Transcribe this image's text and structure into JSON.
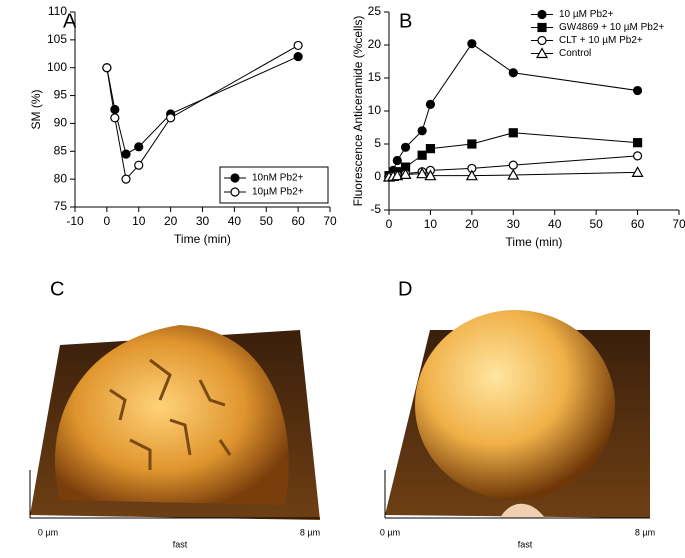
{
  "chart_data": [
    {
      "type": "line",
      "xlabel": "Time (min)",
      "ylabel": "SM (%)",
      "x": [
        0,
        2.5,
        6,
        10,
        20,
        60
      ],
      "xlim": [
        -10,
        70
      ],
      "xticks": [
        -10,
        0,
        10,
        20,
        30,
        40,
        50,
        60,
        70
      ],
      "ylim": [
        75,
        110
      ],
      "yticks": [
        75,
        80,
        85,
        90,
        95,
        100,
        105,
        110
      ],
      "legend": "lower right",
      "legend_frame": true,
      "series": [
        {
          "name": "10nM Pb2+",
          "color": "#000000",
          "marker": "circle",
          "filled": true,
          "values": [
            100,
            92.5,
            84.5,
            85.8,
            91.7,
            102
          ]
        },
        {
          "name": "10µM Pb2+",
          "color": "#000000",
          "marker": "circle",
          "filled": false,
          "values": [
            100,
            91,
            80,
            82.5,
            91,
            104
          ]
        }
      ]
    },
    {
      "type": "line",
      "xlabel": "Time (min)",
      "ylabel": "Fluorescence Anticeramide (%cells)",
      "x": [
        0,
        1,
        2,
        4,
        8,
        10,
        20,
        30,
        60
      ],
      "xlim": [
        0,
        70
      ],
      "xticks": [
        0,
        10,
        20,
        30,
        40,
        50,
        60,
        70
      ],
      "ylim": [
        -5,
        25
      ],
      "yticks": [
        -5,
        0,
        5,
        10,
        15,
        20,
        25
      ],
      "legend": "upper right",
      "legend_frame": false,
      "series": [
        {
          "name": "10  µM Pb2+",
          "color": "#000000",
          "marker": "circle",
          "filled": true,
          "values": [
            0.2,
            1,
            2.5,
            4.5,
            7,
            11,
            20.2,
            15.8,
            13.1
          ]
        },
        {
          "name": "GW4869 + 10  µM Pb2+",
          "color": "#000000",
          "marker": "square",
          "filled": true,
          "values": [
            0.2,
            0.5,
            0.8,
            1.5,
            3.3,
            4.3,
            5,
            6.7,
            5.2
          ]
        },
        {
          "name": "CLT + 10  µM Pb2+",
          "color": "#000000",
          "marker": "circle",
          "filled": false,
          "values": [
            0,
            0.2,
            0.3,
            0.5,
            0.8,
            1,
            1.3,
            1.8,
            3.2
          ]
        },
        {
          "name": "Control",
          "color": "#000000",
          "marker": "triangle",
          "filled": false,
          "values": [
            0,
            0.1,
            0.2,
            0.4,
            0.5,
            0.2,
            0.2,
            0.3,
            0.7
          ]
        }
      ]
    }
  ],
  "panel_labels": [
    "A",
    "B",
    "C",
    "D"
  ],
  "images": [
    {
      "axis_labels": [
        "0 µm",
        "fast",
        "8 µm"
      ]
    },
    {
      "axis_labels": [
        "0 µm",
        "fast",
        "8 µm"
      ]
    }
  ]
}
